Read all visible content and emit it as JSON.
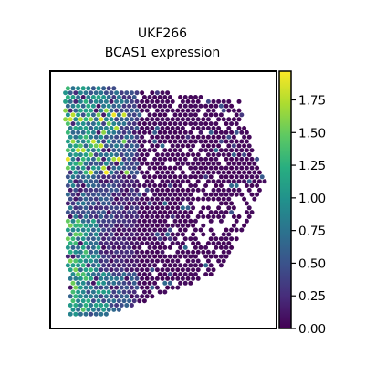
{
  "chart_data": {
    "type": "heatmap",
    "subtype": "spatial hexbin spot map",
    "title_line1": "UKF266",
    "title_line2": "BCAS1 expression",
    "xlabel": "",
    "ylabel": "",
    "colormap": "viridis",
    "color_range": [
      0.0,
      1.97
    ],
    "colorbar_ticks": [
      "0.00",
      "0.25",
      "0.50",
      "0.75",
      "1.00",
      "1.25",
      "1.50",
      "1.75"
    ],
    "axes_visible": false,
    "grid": false,
    "colors": {
      "viridis_low": "#440154",
      "viridis_mid": "#21918c",
      "viridis_high": "#fde725",
      "frame": "#000000"
    }
  }
}
